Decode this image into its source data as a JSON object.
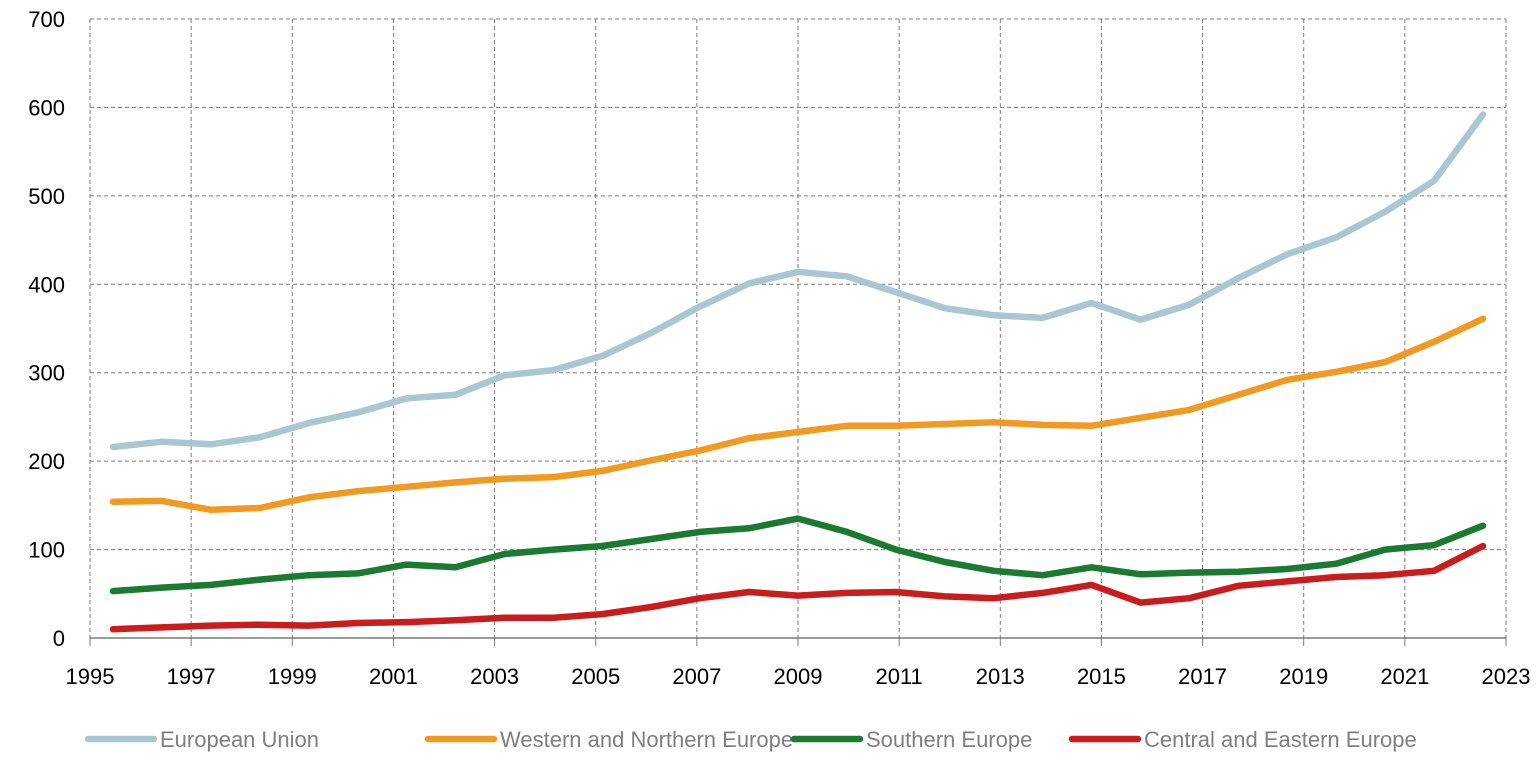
{
  "chart_data": {
    "type": "line",
    "title": "",
    "xlabel": "",
    "ylabel": "",
    "ylim": [
      0,
      700
    ],
    "yticks": [
      "0",
      "100",
      "200",
      "300",
      "400",
      "500",
      "600",
      "700"
    ],
    "xticks": [
      "1995",
      "1997",
      "1999",
      "2001",
      "2003",
      "2005",
      "2007",
      "2009",
      "2011",
      "2013",
      "2015",
      "2017",
      "2019",
      "2021",
      "2023"
    ],
    "x": [
      1995,
      1996,
      1997,
      1998,
      1999,
      2000,
      2001,
      2002,
      2003,
      2004,
      2005,
      2006,
      2007,
      2008,
      2009,
      2010,
      2011,
      2012,
      2013,
      2014,
      2015,
      2016,
      2017,
      2018,
      2019,
      2020,
      2021,
      2022,
      2023
    ],
    "grid": true,
    "legend_position": "bottom",
    "series": [
      {
        "name": "European Union",
        "color": "#a9c6d1",
        "values": [
          216,
          222,
          219,
          227,
          243,
          255,
          271,
          275,
          297,
          303,
          319,
          345,
          375,
          401,
          414,
          409,
          391,
          373,
          365,
          362,
          379,
          360,
          377,
          407,
          434,
          453,
          482,
          517,
          592
        ]
      },
      {
        "name": "Western and Northern Europe",
        "color": "#f19a21",
        "values": [
          154,
          155,
          145,
          147,
          159,
          166,
          171,
          176,
          180,
          182,
          189,
          201,
          212,
          226,
          233,
          240,
          240,
          242,
          244,
          241,
          240,
          249,
          258,
          275,
          292,
          301,
          312,
          335,
          361
        ]
      },
      {
        "name": "Southern Europe",
        "color": "#1a7a2f",
        "values": [
          53,
          57,
          60,
          66,
          71,
          73,
          83,
          80,
          95,
          100,
          104,
          112,
          120,
          124,
          135,
          120,
          100,
          86,
          76,
          71,
          80,
          72,
          74,
          75,
          78,
          84,
          100,
          105,
          127
        ]
      },
      {
        "name": "Central and Eastern Europe",
        "color": "#c91d1d",
        "values": [
          10,
          12,
          14,
          15,
          14,
          17,
          18,
          20,
          23,
          23,
          27,
          35,
          45,
          52,
          48,
          51,
          52,
          47,
          45,
          51,
          60,
          40,
          45,
          59,
          64,
          69,
          71,
          76,
          104
        ]
      }
    ]
  }
}
